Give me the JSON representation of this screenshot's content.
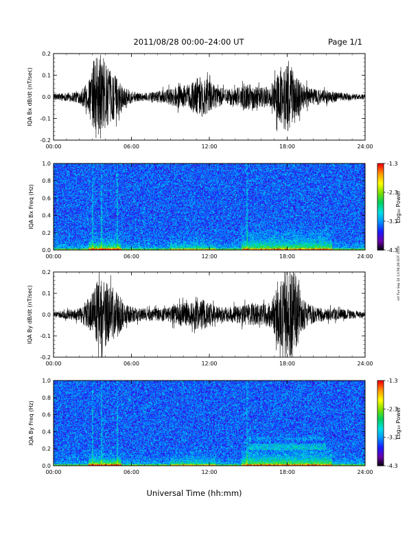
{
  "page": {
    "title": "2011/08/28  00:00–24:00 UT",
    "page_label": "Page 1/1",
    "x_axis_title": "Universal Time (hh:mm)",
    "stamp": "nrt Tue Sep 24 13:58:28 EDT 2019"
  },
  "colorbar": {
    "label": "Log₁₀ Power",
    "ticks": [
      "-1.3",
      "-2.3",
      "-3.3",
      "-4.3"
    ],
    "range": [
      -4.3,
      -1.3
    ],
    "colors": [
      "#000000",
      "#6a00a8",
      "#1a1aff",
      "#0096ff",
      "#00e0e0",
      "#00d060",
      "#7ee000",
      "#ffff00",
      "#ff9a00",
      "#ff0000"
    ]
  },
  "chart_data": [
    {
      "type": "line",
      "title": "",
      "xlabel": "",
      "ylabel": "IQA Bx dB/dt (nT/sec)",
      "xlim": [
        0,
        24
      ],
      "ylim": [
        -0.2,
        0.2
      ],
      "x_ticks": [
        "00:00",
        "06:00",
        "12:00",
        "18:00",
        "24:00"
      ],
      "y_ticks": [
        "0.2",
        "0.1",
        "0.0",
        "-0.1",
        "-0.2"
      ],
      "envelope": {
        "x": [
          0,
          1,
          2,
          2.7,
          3.2,
          3.7,
          4.2,
          4.8,
          5.5,
          6.5,
          7.5,
          8.5,
          9.5,
          10.5,
          11.2,
          11.9,
          12.5,
          13.2,
          14,
          15,
          16,
          16.8,
          17.5,
          18.1,
          18.6,
          19.2,
          20,
          21,
          22,
          23,
          24
        ],
        "amplitude": [
          0.015,
          0.02,
          0.03,
          0.07,
          0.2,
          0.2,
          0.13,
          0.1,
          0.04,
          0.02,
          0.02,
          0.03,
          0.05,
          0.06,
          0.1,
          0.08,
          0.05,
          0.04,
          0.04,
          0.06,
          0.05,
          0.05,
          0.14,
          0.16,
          0.12,
          0.06,
          0.04,
          0.03,
          0.02,
          0.015,
          0.012
        ]
      }
    },
    {
      "type": "heatmap",
      "title": "",
      "xlabel": "",
      "ylabel": "IQA Bx Freq (Hz)",
      "xlim": [
        0,
        24
      ],
      "ylim": [
        0,
        1.0
      ],
      "x_ticks": [
        "00:00",
        "06:00",
        "12:00",
        "18:00",
        "24:00"
      ],
      "y_ticks": [
        "1.0",
        "0.8",
        "0.6",
        "0.4",
        "0.2",
        "0.0"
      ],
      "value_range": [
        -4.3,
        -1.3
      ]
    },
    {
      "type": "line",
      "title": "",
      "xlabel": "",
      "ylabel": "IQA By dB/dt (nT/sec)",
      "xlim": [
        0,
        24
      ],
      "ylim": [
        -0.2,
        0.2
      ],
      "x_ticks": [
        "00:00",
        "06:00",
        "12:00",
        "18:00",
        "24:00"
      ],
      "y_ticks": [
        "0.2",
        "0.1",
        "0.0",
        "-0.1",
        "-0.2"
      ],
      "envelope": {
        "x": [
          0,
          1,
          2,
          2.7,
          3.2,
          3.7,
          4.2,
          4.8,
          5.5,
          6.5,
          7.5,
          8.5,
          9.5,
          10.5,
          11.2,
          11.9,
          12.5,
          13.2,
          14,
          15,
          16,
          16.8,
          17.5,
          18.1,
          18.6,
          19.2,
          20,
          21,
          22,
          23,
          24
        ],
        "amplitude": [
          0.015,
          0.02,
          0.03,
          0.08,
          0.15,
          0.17,
          0.14,
          0.12,
          0.05,
          0.03,
          0.03,
          0.03,
          0.05,
          0.06,
          0.08,
          0.06,
          0.04,
          0.035,
          0.04,
          0.05,
          0.05,
          0.06,
          0.18,
          0.2,
          0.2,
          0.08,
          0.04,
          0.03,
          0.025,
          0.02,
          0.015
        ]
      }
    },
    {
      "type": "heatmap",
      "title": "",
      "xlabel": "",
      "ylabel": "IQA By Freq (Hz)",
      "xlim": [
        0,
        24
      ],
      "ylim": [
        0,
        1.0
      ],
      "x_ticks": [
        "00:00",
        "06:00",
        "12:00",
        "18:00",
        "24:00"
      ],
      "y_ticks": [
        "1.0",
        "0.8",
        "0.6",
        "0.4",
        "0.2",
        "0.0"
      ],
      "value_range": [
        -4.3,
        -1.3
      ]
    }
  ]
}
